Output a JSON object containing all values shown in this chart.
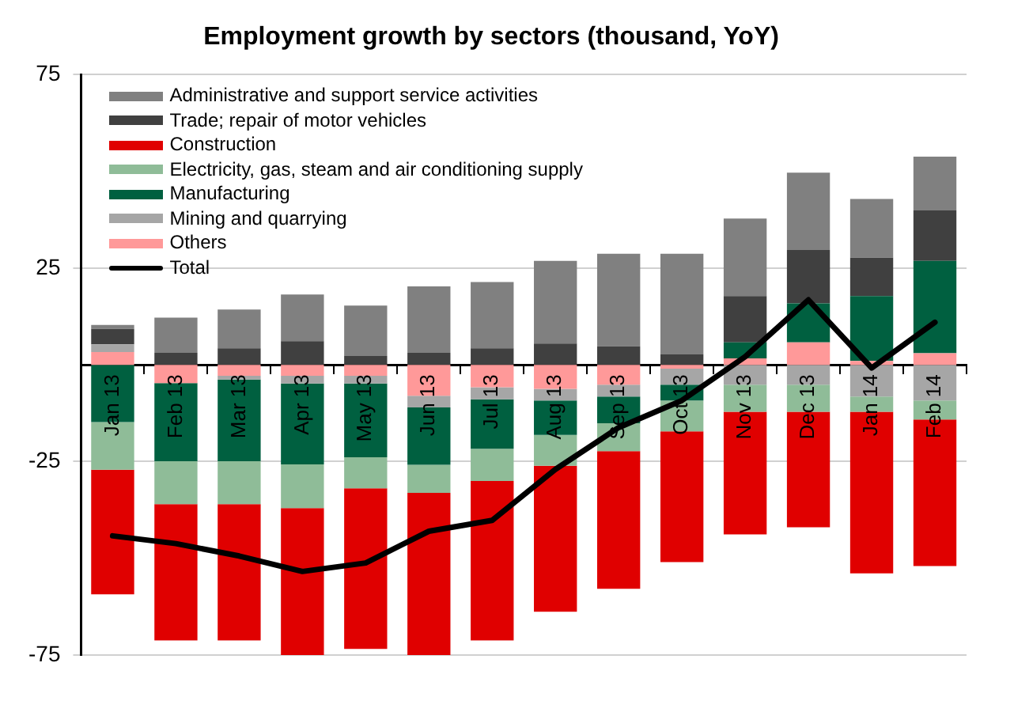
{
  "chart_data": {
    "type": "bar",
    "title": "Employment growth by sectors (thousand, YoY)",
    "stacked": true,
    "categories": [
      "Jan 13",
      "Feb 13",
      "Mar 13",
      "Apr 13",
      "May 13",
      "Jun 13",
      "Jul 13",
      "Aug 13",
      "Sep 13",
      "Oct 13",
      "Nov 13",
      "Dec 13",
      "Jan 14",
      "Feb 14"
    ],
    "series": [
      {
        "name": "Others",
        "color": "#ff9999",
        "values": [
          3.3,
          -4.7,
          -2.8,
          -2.8,
          -2.8,
          -8,
          -5.8,
          -6.2,
          -5.1,
          -1,
          1.7,
          5.8,
          1,
          3
        ]
      },
      {
        "name": "Mining and quarrying",
        "color": "#a6a6a6",
        "values": [
          2,
          0,
          -1,
          -2,
          -2,
          -3,
          -3.1,
          -3,
          -3.1,
          -4.1,
          -5.1,
          -5.1,
          -8.2,
          -9.2
        ]
      },
      {
        "name": "Manufacturing",
        "color": "#006040",
        "values": [
          -14.8,
          -20.2,
          -21.1,
          -20.9,
          -19.1,
          -14.8,
          -12.8,
          -8.9,
          -6.9,
          -4.1,
          4.1,
          10.1,
          16.8,
          23.9
        ]
      },
      {
        "name": "Electricity, gas, steam and air conditioning supply",
        "color": "#8fbc98",
        "values": [
          -12.3,
          -11.1,
          -11.1,
          -11.3,
          -8,
          -7.3,
          -8.3,
          -8,
          -7.2,
          -8,
          -7,
          -7,
          -3.9,
          -4.9
        ]
      },
      {
        "name": "Construction",
        "color": "#e00000",
        "values": [
          -32.2,
          -35.2,
          -35.2,
          -39.2,
          -41.5,
          -42.3,
          -41.2,
          -37.7,
          -35.6,
          -33.8,
          -31.7,
          -29.9,
          -41.8,
          -37.9
        ]
      },
      {
        "name": "Trade; repair of motor vehicles",
        "color": "#404040",
        "values": [
          4,
          3.1,
          4.3,
          6.1,
          2.3,
          3.1,
          4.3,
          5.5,
          4.8,
          2.7,
          12,
          13.8,
          9.9,
          13
        ]
      },
      {
        "name": "Administrative and support service activities",
        "color": "#808080",
        "values": [
          1,
          9.1,
          10,
          12.1,
          13,
          17.2,
          17.1,
          21.4,
          23.9,
          26,
          20,
          20,
          15.2,
          13.9
        ]
      },
      {
        "name": "Total",
        "type": "line",
        "color": "#000000",
        "values": [
          -44.2,
          -46.2,
          -49.4,
          -53.4,
          -51.2,
          -43,
          -40.2,
          -27,
          -16.2,
          -9.2,
          2.1,
          16.8,
          -0.8,
          11
        ]
      }
    ],
    "ylim": [
      -75,
      75
    ],
    "yticks": [
      -75,
      -25,
      25,
      75
    ],
    "grid": "y",
    "legend": "top left",
    "marker": "none"
  }
}
